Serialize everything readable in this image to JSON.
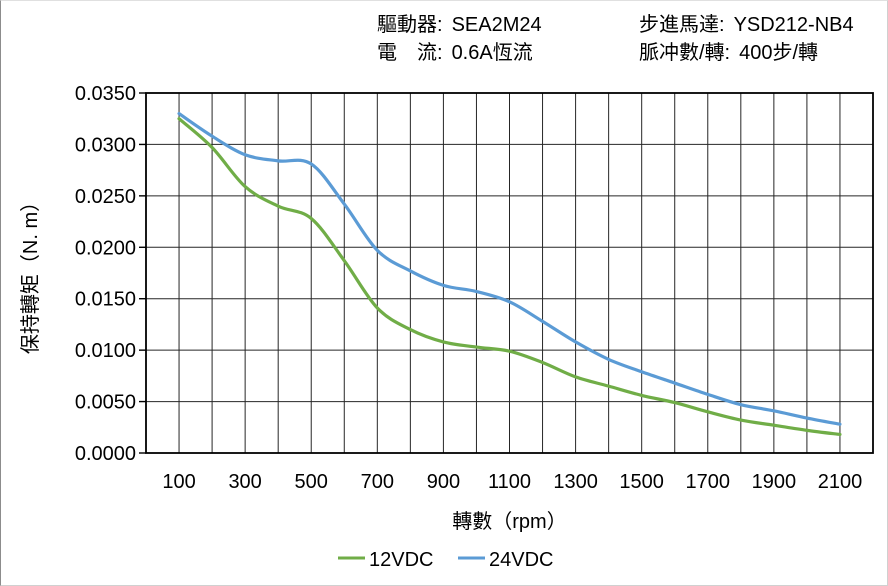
{
  "header": {
    "driver_label": "驅動器:",
    "driver_value": "SEA2M24",
    "motor_label": "步進馬達:",
    "motor_value": "YSD212-NB4",
    "current_label": "電　流:",
    "current_value": "0.6A恆流",
    "pulses_label": "脈冲數/轉:",
    "pulses_value": "400步/轉"
  },
  "chart_data": {
    "type": "line",
    "title": "",
    "xlabel": "轉數（rpm）",
    "ylabel": "保持轉矩（N. m）",
    "xlim": [
      0,
      2200
    ],
    "ylim": [
      0,
      0.035
    ],
    "x_grid_step": 100,
    "y_tick_step": 0.005,
    "y_tick_decimals": 4,
    "x_tick_labels": [
      100,
      300,
      500,
      700,
      900,
      1100,
      1300,
      1500,
      1700,
      1900,
      2100
    ],
    "grid": true,
    "legend_position": "bottom",
    "x": [
      100,
      200,
      300,
      400,
      500,
      600,
      700,
      800,
      900,
      1000,
      1100,
      1200,
      1300,
      1400,
      1500,
      1600,
      1700,
      1800,
      1900,
      2000,
      2100
    ],
    "series": [
      {
        "name": "12VDC",
        "color": "#70AD47",
        "values": [
          0.0325,
          0.0297,
          0.0259,
          0.024,
          0.0228,
          0.0187,
          0.0141,
          0.012,
          0.0108,
          0.0103,
          0.0099,
          0.0088,
          0.0074,
          0.0065,
          0.0056,
          0.0049,
          0.004,
          0.0032,
          0.0027,
          0.0022,
          0.0018
        ]
      },
      {
        "name": "24VDC",
        "color": "#5B9BD5",
        "values": [
          0.033,
          0.0308,
          0.029,
          0.0284,
          0.0281,
          0.0242,
          0.0197,
          0.0177,
          0.0163,
          0.0157,
          0.0147,
          0.0128,
          0.0108,
          0.0091,
          0.0079,
          0.0068,
          0.0057,
          0.0047,
          0.0041,
          0.0034,
          0.0028
        ]
      }
    ],
    "axis_color": "#000000",
    "grid_color": "#262626",
    "text_color": "#000000"
  }
}
